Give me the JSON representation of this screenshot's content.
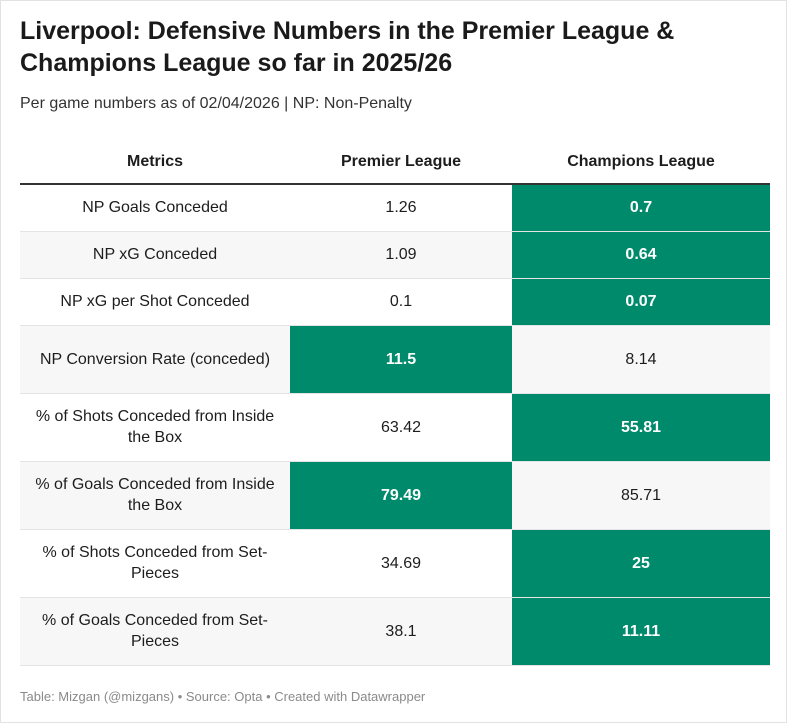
{
  "title": "Liverpool: Defensive Numbers in the Premier League & Champions League so far in 2025/26",
  "subtitle": "Per game numbers as of 02/04/2026 | NP: Non-Penalty",
  "footer": "Table: Mizgan (@mizgans) • Source: Opta • Created with Datawrapper",
  "colors": {
    "highlight": "#008a6c",
    "highlight_text": "#ffffff",
    "alt_row": "#f7f7f7"
  },
  "chart_data": {
    "type": "table",
    "columns": [
      "Metrics",
      "Premier League",
      "Champions League"
    ],
    "rows": [
      {
        "metric": "NP Goals Conceded",
        "pl": "1.26",
        "cl": "0.7",
        "highlight": "cl"
      },
      {
        "metric": "NP xG Conceded",
        "pl": "1.09",
        "cl": "0.64",
        "highlight": "cl"
      },
      {
        "metric": "NP xG per Shot Conceded",
        "pl": "0.1",
        "cl": "0.07",
        "highlight": "cl"
      },
      {
        "metric": "NP Conversion Rate (conceded)",
        "pl": "11.5",
        "cl": "8.14",
        "highlight": "pl"
      },
      {
        "metric": "% of Shots Conceded from Inside the Box",
        "pl": "63.42",
        "cl": "55.81",
        "highlight": "cl"
      },
      {
        "metric": "% of Goals Conceded from Inside the Box",
        "pl": "79.49",
        "cl": "85.71",
        "highlight": "pl"
      },
      {
        "metric": "% of Shots Conceded from Set-Pieces",
        "pl": "34.69",
        "cl": "25",
        "highlight": "cl"
      },
      {
        "metric": "% of Goals Conceded from Set-Pieces",
        "pl": "38.1",
        "cl": "11.11",
        "highlight": "cl"
      }
    ]
  }
}
